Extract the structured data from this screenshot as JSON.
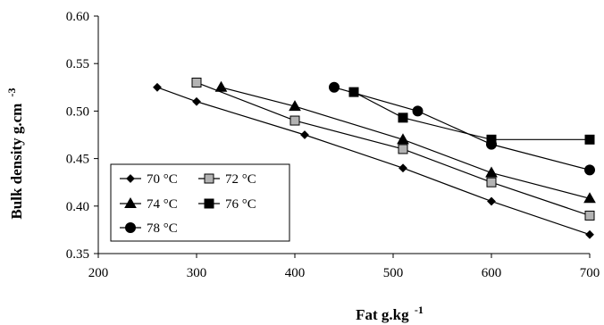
{
  "chart_data": {
    "type": "line",
    "title": "",
    "xlabel": "Fat g.kg",
    "xlabel_sup": "-1",
    "ylabel": "Bulk density g.cm",
    "ylabel_sup": "-3",
    "xlim": [
      200,
      700
    ],
    "ylim": [
      0.35,
      0.6
    ],
    "x_ticks": [
      200,
      300,
      400,
      500,
      600,
      700
    ],
    "y_ticks": [
      0.35,
      0.4,
      0.45,
      0.5,
      0.55,
      0.6
    ],
    "y_tick_labels": [
      "0.35",
      "0.40",
      "0.45",
      "0.50",
      "0.55",
      "0.60"
    ],
    "grid": false,
    "legend_position": "bottom-left",
    "series": [
      {
        "name": "70 °C",
        "marker": "diamond",
        "fill": "#000000",
        "size": "small",
        "x": [
          260,
          300,
          410,
          510,
          600,
          700
        ],
        "y": [
          0.525,
          0.51,
          0.475,
          0.44,
          0.405,
          0.37
        ]
      },
      {
        "name": "72 °C",
        "marker": "square",
        "fill": "#b3b3b3",
        "size": "large",
        "x": [
          300,
          400,
          510,
          600,
          700
        ],
        "y": [
          0.53,
          0.49,
          0.46,
          0.425,
          0.39
        ]
      },
      {
        "name": "74 °C",
        "marker": "triangle",
        "fill": "#000000",
        "size": "large",
        "x": [
          325,
          400,
          510,
          600,
          700
        ],
        "y": [
          0.525,
          0.505,
          0.47,
          0.435,
          0.408
        ]
      },
      {
        "name": "76 °C",
        "marker": "square",
        "fill": "#000000",
        "size": "large",
        "x": [
          460,
          510,
          600,
          700
        ],
        "y": [
          0.52,
          0.493,
          0.47,
          0.47
        ]
      },
      {
        "name": "78 °C",
        "marker": "circle",
        "fill": "#000000",
        "size": "large",
        "x": [
          440,
          525,
          600,
          700
        ],
        "y": [
          0.525,
          0.5,
          0.465,
          0.438
        ]
      }
    ]
  }
}
